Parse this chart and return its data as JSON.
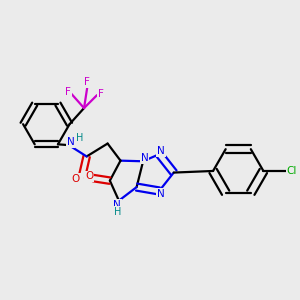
{
  "background_color": "#ebebeb",
  "atom_colors": {
    "C": "#000000",
    "N": "#0000ee",
    "O": "#dd0000",
    "F": "#cc00cc",
    "Cl": "#00aa00",
    "H": "#008888"
  }
}
